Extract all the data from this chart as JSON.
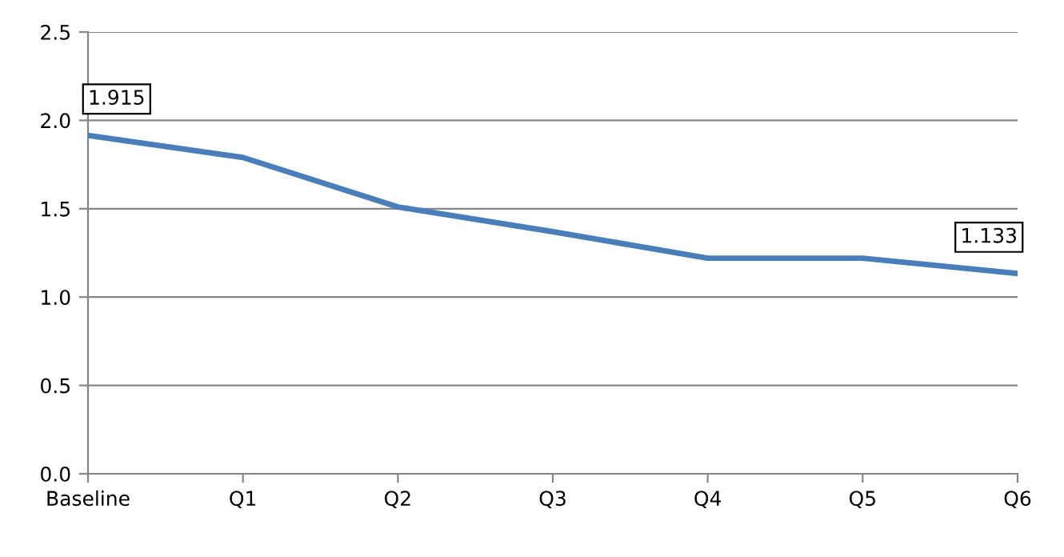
{
  "chart_data": {
    "type": "line",
    "categories": [
      "Baseline",
      "Q1",
      "Q2",
      "Q3",
      "Q4",
      "Q5",
      "Q6"
    ],
    "series": [
      {
        "color": "#4a7ebb",
        "values": [
          1.915,
          1.79,
          1.51,
          1.37,
          1.22,
          1.22,
          1.133
        ],
        "value_labels": [
          "1.915",
          null,
          null,
          null,
          null,
          null,
          "1.133"
        ]
      }
    ],
    "ylim": [
      0,
      2.5
    ],
    "yticks": [
      "0.0",
      "0.5",
      "1.0",
      "1.5",
      "2.0",
      "2.5"
    ],
    "grid": "y",
    "legend": false,
    "marker": "none",
    "line_style": "solid"
  }
}
